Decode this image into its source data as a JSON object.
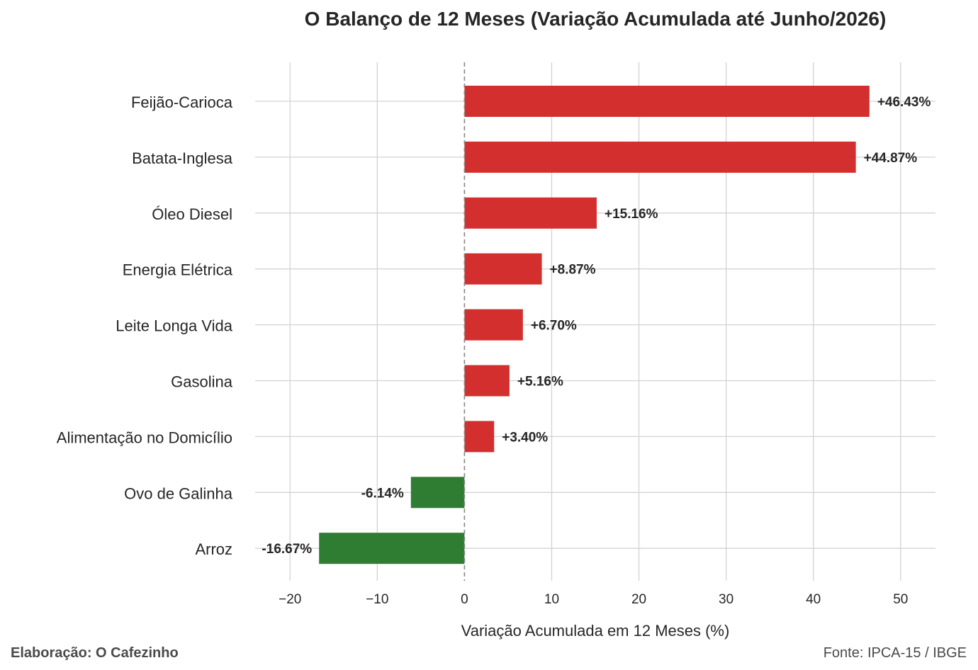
{
  "chart_data": {
    "type": "bar",
    "orientation": "horizontal",
    "title": "O Balanço de 12 Meses (Variação Acumulada até Junho/2026)",
    "xlabel": "Variação Acumulada em 12 Meses (%)",
    "ylabel": "",
    "xlim": [
      -24,
      54
    ],
    "xticks": [
      -20,
      -10,
      0,
      10,
      20,
      30,
      40,
      50
    ],
    "xtick_labels": [
      "−20",
      "−10",
      "0",
      "10",
      "20",
      "30",
      "40",
      "50"
    ],
    "grid": true,
    "zero_line": "dashed",
    "categories": [
      "Feijão-Carioca",
      "Batata-Inglesa",
      "Óleo Diesel",
      "Energia Elétrica",
      "Leite Longa Vida",
      "Gasolina",
      "Alimentação no Domicílio",
      "Ovo de Galinha",
      "Arroz"
    ],
    "values": [
      46.43,
      44.87,
      15.16,
      8.87,
      6.7,
      5.16,
      3.4,
      -6.14,
      -16.67
    ],
    "data_labels": [
      "+46.43%",
      "+44.87%",
      "+15.16%",
      "+8.87%",
      "+6.70%",
      "+5.16%",
      "+3.40%",
      "-6.14%",
      "-16.67%"
    ],
    "colors": {
      "positive": "#d32f2f",
      "negative": "#2e7d32",
      "grid": "#d3d3d3",
      "zero_line": "#888888"
    }
  },
  "footer": {
    "credit": "Elaboração: O Cafezinho",
    "source": "Fonte: IPCA-15 / IBGE"
  }
}
